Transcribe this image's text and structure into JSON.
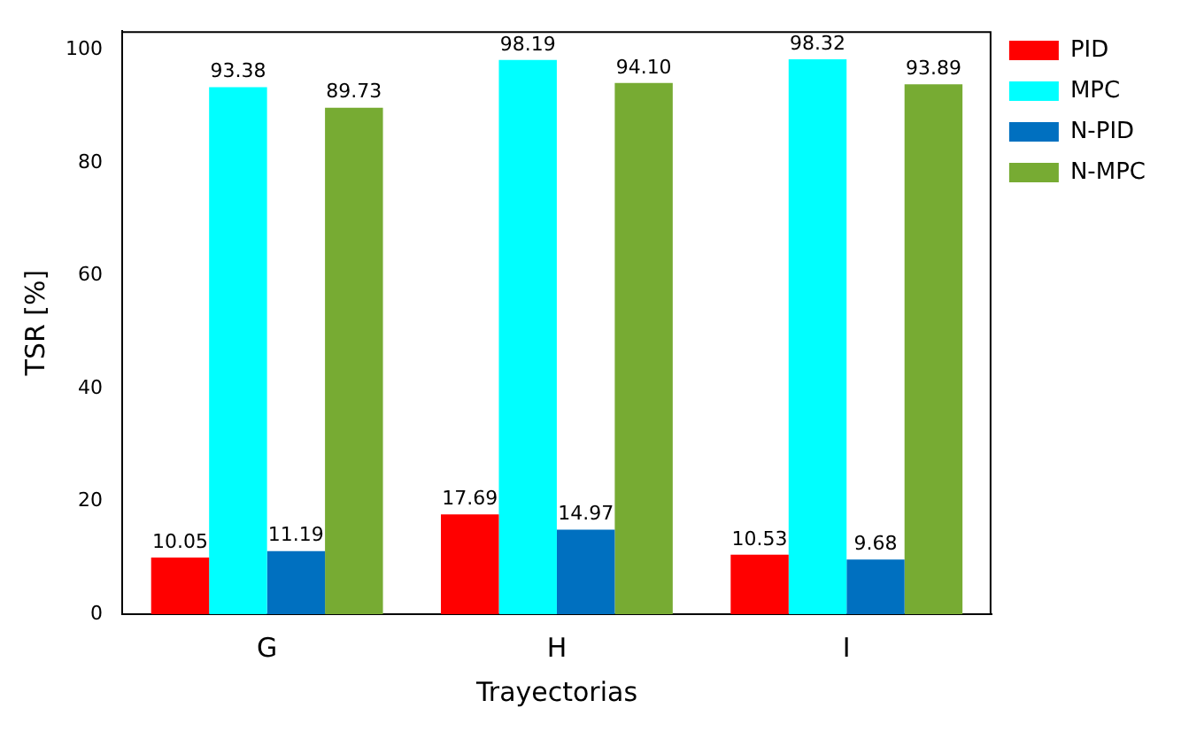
{
  "chart_data": {
    "type": "bar",
    "xlabel": "Trayectorias",
    "ylabel": "TSR [%]",
    "categories": [
      "G",
      "H",
      "I"
    ],
    "series": [
      {
        "name": "PID",
        "color": "#ff0000",
        "values": [
          10.05,
          17.69,
          10.53
        ],
        "value_labels": [
          "10.05",
          "17.69",
          "10.53"
        ]
      },
      {
        "name": "MPC",
        "color": "#00ffff",
        "values": [
          93.38,
          98.19,
          98.32
        ],
        "value_labels": [
          "93.38",
          "98.19",
          "98.32"
        ]
      },
      {
        "name": "N-PID",
        "color": "#0070c0",
        "values": [
          11.19,
          14.97,
          9.68
        ],
        "value_labels": [
          "11.19",
          "14.97",
          "9.68"
        ]
      },
      {
        "name": "N-MPC",
        "color": "#77ab33",
        "values": [
          89.73,
          94.1,
          93.89
        ],
        "value_labels": [
          "89.73",
          "94.10",
          "93.89"
        ]
      }
    ],
    "ylim": [
      0,
      103.3
    ],
    "yticks": [
      0,
      20,
      40,
      60,
      80,
      100
    ],
    "grid": false,
    "legend": "top right"
  }
}
